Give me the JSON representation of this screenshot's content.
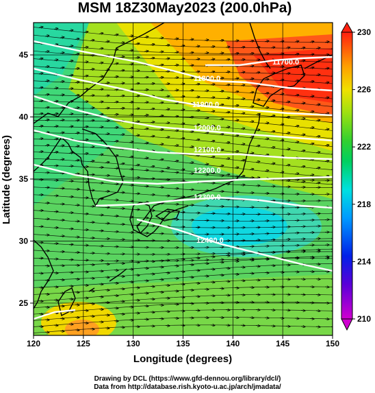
{
  "title": "MSM 18Z30May2023 (200.0hPa)",
  "chart_data": {
    "type": "heatmap",
    "x_axis": {
      "label": "Longitude (degrees)",
      "range": [
        120,
        150
      ],
      "ticks": [
        "120",
        "125",
        "130",
        "135",
        "140",
        "145",
        "150"
      ]
    },
    "y_axis": {
      "label": "Latitude  (degrees)",
      "range": [
        22.4,
        47.6
      ],
      "ticks": [
        "25",
        "30",
        "35",
        "40",
        "45"
      ]
    },
    "colorbar": {
      "range": [
        210,
        230
      ],
      "ticks": [
        "210",
        "214",
        "218",
        "222",
        "226",
        "230"
      ]
    },
    "contours": [
      {
        "label": "11700.0",
        "value": 11700
      },
      {
        "label": "11800.0",
        "value": 11800
      },
      {
        "label": "11900.0",
        "value": 11900
      },
      {
        "label": "12000.0",
        "value": 12000
      },
      {
        "label": "12100.0",
        "value": 12100
      },
      {
        "label": "12200.0",
        "value": 12200
      },
      {
        "label": "12300.0",
        "value": 12300
      },
      {
        "label": "12400.0",
        "value": 12400
      }
    ],
    "grid": true
  },
  "footer": {
    "line1": "Drawing by DCL (https://www.gfd-dennou.org/library/dcl/)",
    "line2": "Data from http://database.rish.kyoto-u.ac.jp/arch/jmadata/"
  }
}
